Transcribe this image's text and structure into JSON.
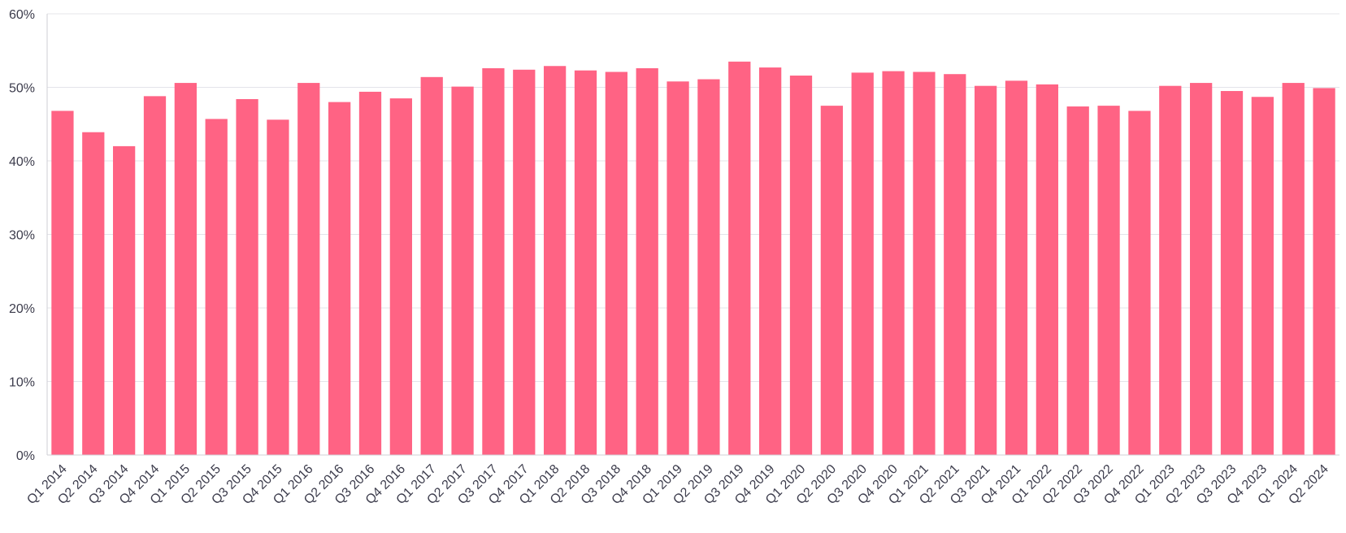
{
  "chart_data": {
    "type": "bar",
    "title": "",
    "xlabel": "",
    "ylabel": "",
    "ylim": [
      0,
      60
    ],
    "yticks": [
      "0%",
      "10%",
      "20%",
      "30%",
      "40%",
      "50%",
      "60%"
    ],
    "ytick_values": [
      0,
      10,
      20,
      30,
      40,
      50,
      60
    ],
    "grid": true,
    "bar_color": "#ff6384",
    "categories": [
      "Q1 2014",
      "Q2 2014",
      "Q3 2014",
      "Q4 2014",
      "Q1 2015",
      "Q2 2015",
      "Q3 2015",
      "Q4 2015",
      "Q1 2016",
      "Q2 2016",
      "Q3 2016",
      "Q4 2016",
      "Q1 2017",
      "Q2 2017",
      "Q3 2017",
      "Q4 2017",
      "Q1 2018",
      "Q2 2018",
      "Q3 2018",
      "Q4 2018",
      "Q1 2019",
      "Q2 2019",
      "Q3 2019",
      "Q4 2019",
      "Q1 2020",
      "Q2 2020",
      "Q3 2020",
      "Q4 2020",
      "Q1 2021",
      "Q2 2021",
      "Q3 2021",
      "Q4 2021",
      "Q1 2022",
      "Q2 2022",
      "Q3 2022",
      "Q4 2022",
      "Q1 2023",
      "Q2 2023",
      "Q3 2023",
      "Q4 2023",
      "Q1 2024",
      "Q2 2024"
    ],
    "values": [
      46.8,
      43.9,
      42.0,
      48.8,
      50.6,
      45.7,
      48.4,
      45.6,
      50.6,
      48.0,
      49.4,
      48.5,
      51.4,
      50.1,
      52.6,
      52.4,
      52.9,
      52.3,
      52.1,
      52.6,
      50.8,
      51.1,
      53.5,
      52.7,
      51.6,
      47.5,
      52.0,
      52.2,
      52.1,
      51.8,
      50.2,
      50.9,
      50.4,
      47.4,
      47.5,
      46.8,
      50.2,
      50.6,
      49.5,
      48.7,
      50.6,
      49.9
    ]
  }
}
